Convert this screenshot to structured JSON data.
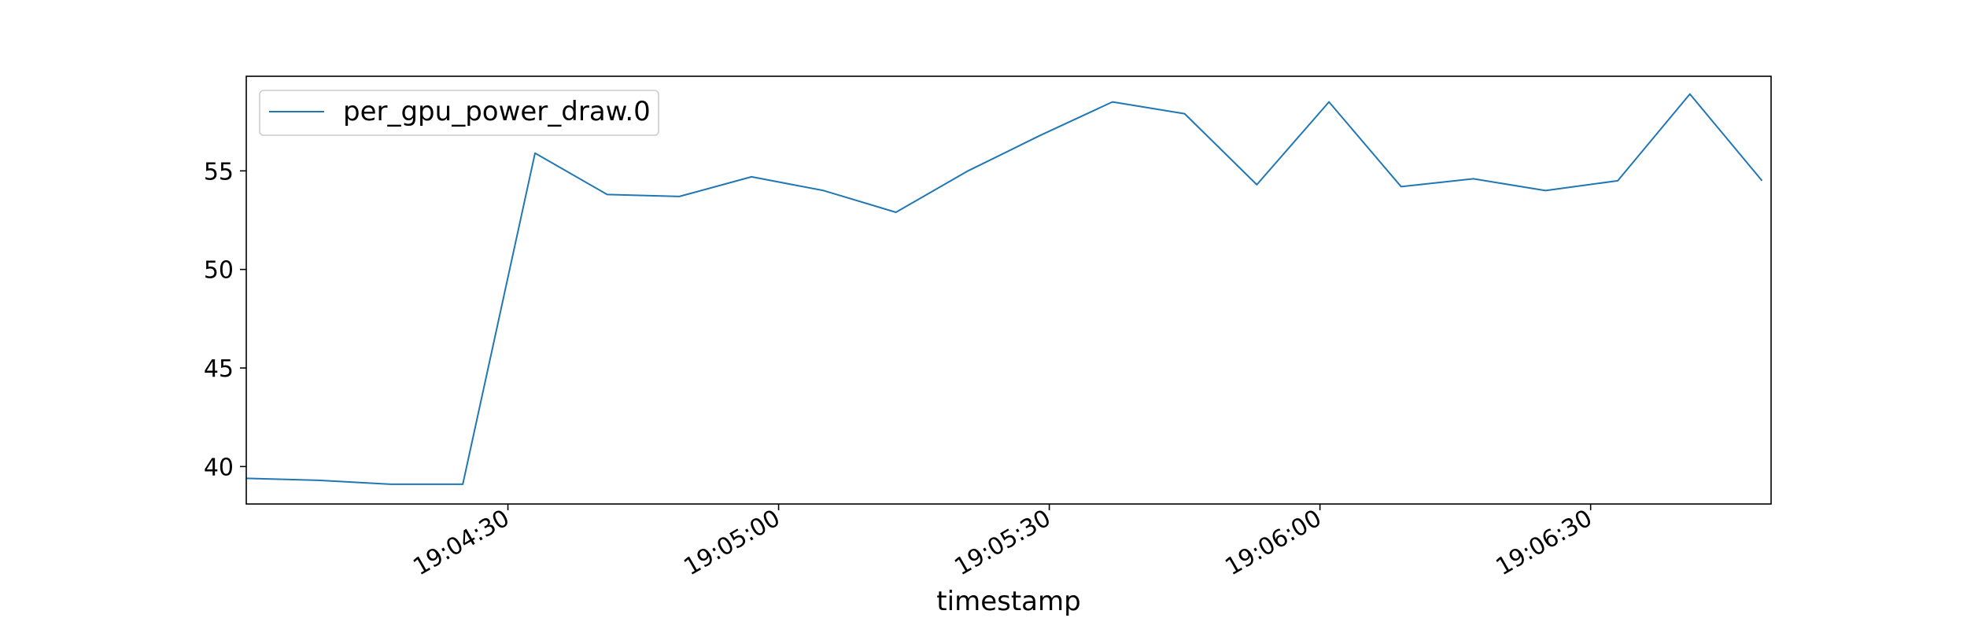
{
  "chart_data": {
    "type": "line",
    "xlabel": "timestamp",
    "ylabel": "",
    "x_ticks": [
      "19:04:30",
      "19:05:00",
      "19:05:30",
      "19:06:00",
      "19:06:30"
    ],
    "y_ticks": [
      40,
      45,
      50,
      55
    ],
    "xlim": [
      "19:04:01",
      "19:06:50"
    ],
    "ylim": [
      38.1,
      59.8
    ],
    "grid": false,
    "legend_position": "top-left",
    "series": [
      {
        "name": "per_gpu_power_draw.0",
        "color": "#1f77b4",
        "points": [
          {
            "x": "19:04:01",
            "y": 39.4
          },
          {
            "x": "19:04:09",
            "y": 39.3
          },
          {
            "x": "19:04:17",
            "y": 39.1
          },
          {
            "x": "19:04:25",
            "y": 39.1
          },
          {
            "x": "19:04:33",
            "y": 55.9
          },
          {
            "x": "19:04:41",
            "y": 53.8
          },
          {
            "x": "19:04:49",
            "y": 53.7
          },
          {
            "x": "19:04:57",
            "y": 54.7
          },
          {
            "x": "19:05:05",
            "y": 54.0
          },
          {
            "x": "19:05:13",
            "y": 52.9
          },
          {
            "x": "19:05:21",
            "y": 55.0
          },
          {
            "x": "19:05:29",
            "y": 56.8
          },
          {
            "x": "19:05:37",
            "y": 58.5
          },
          {
            "x": "19:05:45",
            "y": 57.9
          },
          {
            "x": "19:05:53",
            "y": 54.3
          },
          {
            "x": "19:06:01",
            "y": 58.5
          },
          {
            "x": "19:06:09",
            "y": 54.2
          },
          {
            "x": "19:06:17",
            "y": 54.6
          },
          {
            "x": "19:06:25",
            "y": 54.0
          },
          {
            "x": "19:06:33",
            "y": 54.5
          },
          {
            "x": "19:06:41",
            "y": 58.9
          },
          {
            "x": "19:06:49",
            "y": 54.5
          }
        ]
      }
    ]
  }
}
